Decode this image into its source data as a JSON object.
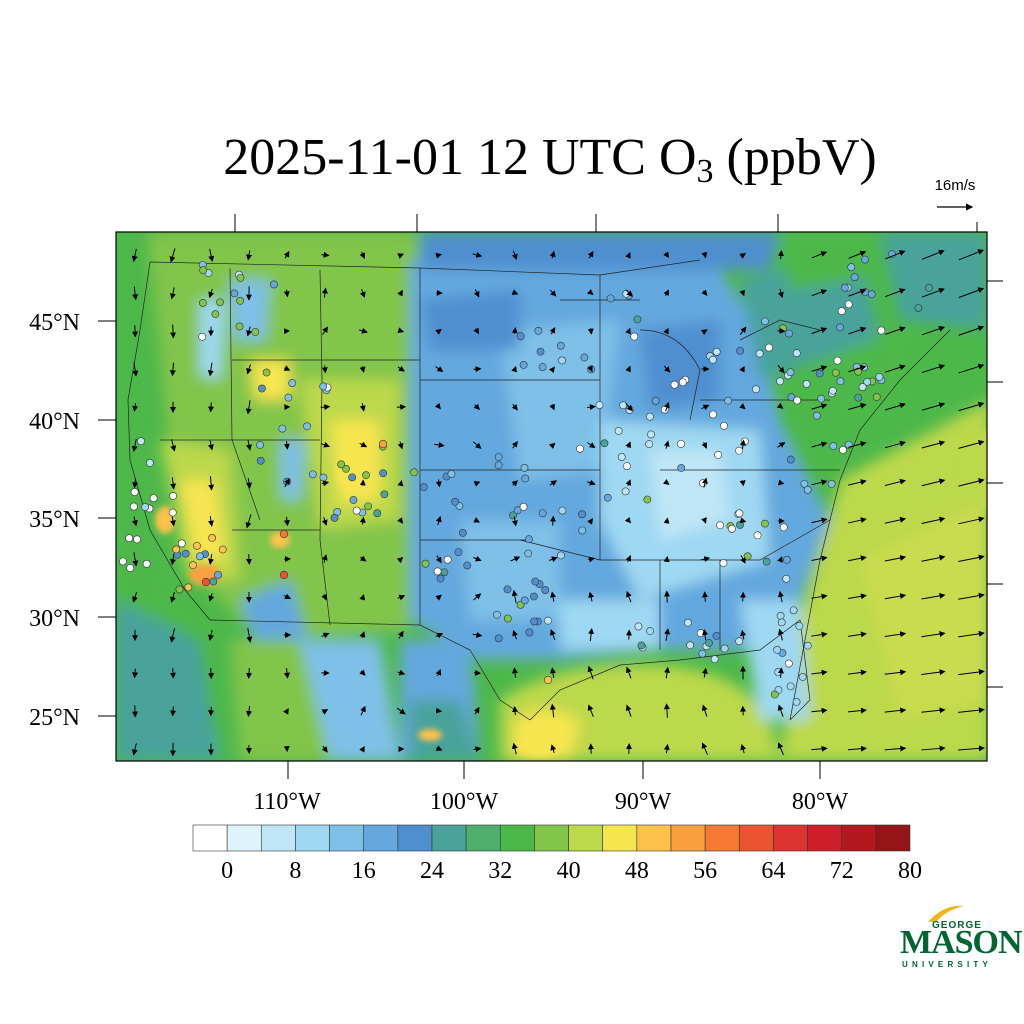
{
  "title": {
    "main": "2025-11-01 12 UTC O",
    "subscript": "3",
    "units": " (ppbV)"
  },
  "wind_reference": {
    "label": "16m/s"
  },
  "map": {
    "lat_ticks": [
      "45°N",
      "40°N",
      "35°N",
      "30°N",
      "25°N"
    ],
    "lon_ticks": [
      "110°W",
      "100°W",
      "90°W",
      "80°W"
    ]
  },
  "colorbar": {
    "labels": [
      "0",
      "8",
      "16",
      "24",
      "32",
      "40",
      "48",
      "56",
      "64",
      "72",
      "80"
    ],
    "colors": [
      "#ffffff",
      "#def3fb",
      "#bfe6f7",
      "#9fd8f2",
      "#7fc0e8",
      "#64a8de",
      "#4f8fd0",
      "#49a39b",
      "#4fad6e",
      "#4db84a",
      "#82c54b",
      "#bcd84c",
      "#f7e54f",
      "#fcc24c",
      "#f9a041",
      "#f57a31",
      "#ec5430",
      "#dd3330",
      "#cc1f2a",
      "#b3181f",
      "#951517"
    ]
  },
  "logo": {
    "top": "GEORGE",
    "main": "MASON",
    "bottom": "UNIVERSITY"
  },
  "colors": {
    "logo_green": "#006633",
    "logo_gold": "#f2b51c"
  }
}
